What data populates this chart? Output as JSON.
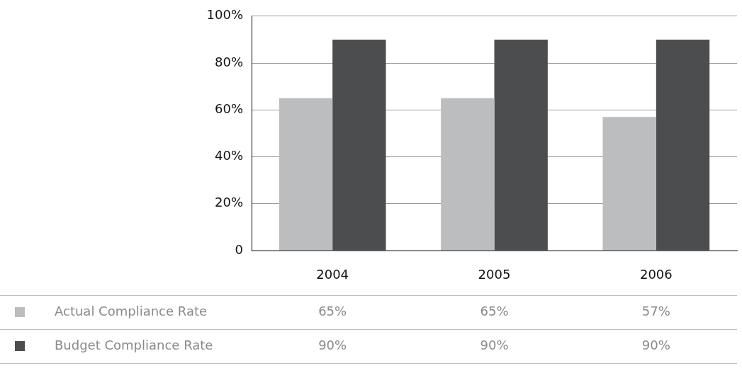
{
  "chart_data": {
    "type": "bar",
    "categories": [
      "2004",
      "2005",
      "2006"
    ],
    "series": [
      {
        "name": "Actual Compliance Rate",
        "color": "#bcbdbf",
        "values": [
          65,
          65,
          57
        ],
        "value_labels": [
          "65%",
          "65%",
          "57%"
        ]
      },
      {
        "name": "Budget Compliance Rate",
        "color": "#4c4d4f",
        "values": [
          90,
          90,
          90
        ],
        "value_labels": [
          "90%",
          "90%",
          "90%"
        ]
      }
    ],
    "ylim": [
      0,
      100
    ],
    "yticks": [
      {
        "value": 0,
        "label": "0"
      },
      {
        "value": 20,
        "label": "20%"
      },
      {
        "value": 40,
        "label": "40%"
      },
      {
        "value": 60,
        "label": "60%"
      },
      {
        "value": 80,
        "label": "80%"
      },
      {
        "value": 100,
        "label": "100%"
      }
    ],
    "grid": "y",
    "legend": "bottom"
  }
}
